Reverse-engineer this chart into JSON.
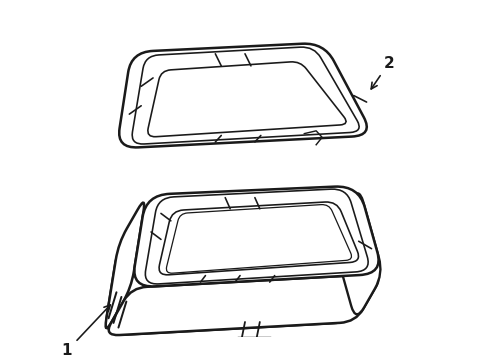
{
  "background_color": "#ffffff",
  "line_color": "#1a1a1a",
  "line_width": 1.3,
  "fig_width": 4.89,
  "fig_height": 3.6,
  "label_1": "1",
  "label_2": "2"
}
